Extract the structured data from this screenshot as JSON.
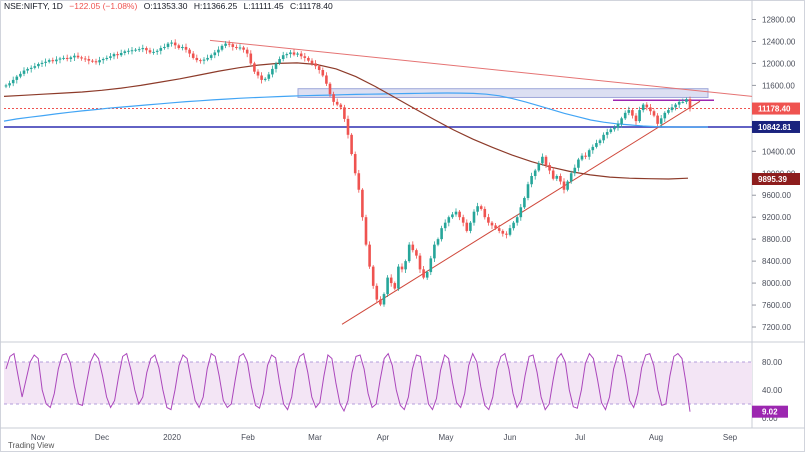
{
  "header": {
    "symbol": "NSE:NIFTY, 1D",
    "change": "−122.05 (−1.08%)",
    "open": "O:11353.30",
    "high": "H:11366.25",
    "low": "L:11111.45",
    "close": "C:11178.40"
  },
  "footer": {
    "text": "Trading View"
  },
  "colors": {
    "up": "#26a69a",
    "down": "#ef5350",
    "ma_blue": "#42a5f5",
    "ma_brown": "#8d3b2a",
    "trend_red": "#e57373",
    "support_line": "#2f2fb0",
    "resistance_purple": "#9c27b0",
    "zone_fill": "#c5cae9",
    "osc_line": "#ab47bc",
    "osc_bg": "#f3e5f5"
  },
  "chart_data": {
    "type": "line",
    "price_axis": {
      "ylim": [
        7000,
        12900
      ],
      "ticks": [
        "12800.00",
        "12400.00",
        "12000.00",
        "11600.00",
        "10400.00",
        "10000.00",
        "9600.00",
        "9200.00",
        "8800.00",
        "8400.00",
        "8000.00",
        "7600.00",
        "7200.00"
      ]
    },
    "price_labels": [
      {
        "text": "11178.40",
        "value": 11178.4,
        "color": "#ef5350"
      },
      {
        "text": "10842.81",
        "value": 10842.81,
        "color": "#1a237e"
      },
      {
        "text": "9895.39",
        "value": 9895.39,
        "color": "#8d1d1d"
      }
    ],
    "x_axis": {
      "labels": [
        "Nov",
        "Dec",
        "2020",
        "Feb",
        "Mar",
        "Apr",
        "May",
        "Jun",
        "Jul",
        "Aug",
        "Sep"
      ]
    },
    "series_close": [
      11600,
      11640,
      11700,
      11760,
      11810,
      11870,
      11900,
      11920,
      11950,
      11990,
      12010,
      12030,
      12060,
      12040,
      12070,
      12090,
      12100,
      12080,
      12110,
      12140,
      12110,
      12090,
      12080,
      12050,
      12040,
      12020,
      12060,
      12080,
      12100,
      12130,
      12170,
      12150,
      12190,
      12220,
      12230,
      12240,
      12250,
      12260,
      12280,
      12240,
      12200,
      12210,
      12230,
      12280,
      12300,
      12360,
      12380,
      12330,
      12280,
      12300,
      12250,
      12180,
      12100,
      12060,
      12050,
      12070,
      12100,
      12150,
      12200,
      12250,
      12320,
      12360,
      12350,
      12300,
      12280,
      12290,
      12250,
      12180,
      12000,
      11850,
      11780,
      11700,
      11720,
      11800,
      11900,
      12000,
      12080,
      12150,
      12170,
      12200,
      12160,
      12180,
      12130,
      12100,
      12050,
      12000,
      11950,
      11880,
      11780,
      11630,
      11440,
      11300,
      11250,
      11200,
      10990,
      10700,
      10350,
      10000,
      9700,
      9200,
      8700,
      8300,
      7950,
      7700,
      7610,
      7800,
      8100,
      8000,
      7900,
      8300,
      8250,
      8400,
      8700,
      8600,
      8500,
      8250,
      8100,
      8200,
      8450,
      8700,
      8800,
      9000,
      9100,
      9200,
      9250,
      9300,
      9200,
      9100,
      8950,
      9100,
      9300,
      9400,
      9350,
      9200,
      9100,
      9050,
      9000,
      8950,
      8900,
      8880,
      9000,
      9100,
      9200,
      9380,
      9550,
      9800,
      9950,
      10050,
      10180,
      10300,
      10150,
      10050,
      9900,
      9950,
      9850,
      9700,
      9850,
      10000,
      10100,
      10250,
      10320,
      10300,
      10420,
      10480,
      10550,
      10600,
      10700,
      10750,
      10800,
      10830,
      10900,
      11000,
      11100,
      11150,
      11050,
      10950,
      11150,
      11250,
      11200,
      11130,
      11050,
      10900,
      11000,
      11100,
      11150,
      11200,
      11250,
      11300,
      11300,
      11350,
      11178
    ],
    "ma_blue": [
      10950,
      10990,
      11020,
      11050,
      11080,
      11110,
      11135,
      11160,
      11185,
      11205,
      11225,
      11245,
      11265,
      11285,
      11305,
      11320,
      11335,
      11350,
      11365,
      11375,
      11385,
      11395,
      11405,
      11412,
      11418,
      11424,
      11430,
      11436,
      11440,
      11444,
      11448,
      11452,
      11456,
      11460,
      11462,
      11460,
      11455,
      11440,
      11410,
      11360,
      11300,
      11230,
      11160,
      11090,
      11030,
      10970,
      10930,
      10900,
      10880,
      10860,
      10850,
      10845,
      10840,
      10840,
      10842
    ],
    "ma_brown": [
      11400,
      11420,
      11440,
      11460,
      11480,
      11510,
      11550,
      11600,
      11660,
      11720,
      11790,
      11860,
      11920,
      11970,
      12000,
      12010,
      11980,
      11900,
      11760,
      11580,
      11380,
      11180,
      10980,
      10790,
      10620,
      10470,
      10330,
      10210,
      10110,
      10030,
      9970,
      9930,
      9910,
      9900,
      9895,
      9910
    ],
    "stoch_axis": {
      "ylim": [
        0,
        100
      ],
      "ticks": [
        "80.00",
        "40.00",
        "0.00"
      ],
      "bands": [
        20,
        80
      ]
    },
    "stoch_label": {
      "text": "9.02",
      "value": 9.02
    },
    "stoch_k": [
      70,
      88,
      92,
      60,
      30,
      55,
      80,
      90,
      85,
      40,
      20,
      15,
      35,
      70,
      90,
      92,
      78,
      45,
      20,
      18,
      50,
      80,
      92,
      85,
      60,
      30,
      15,
      25,
      60,
      88,
      92,
      70,
      40,
      20,
      30,
      65,
      85,
      90,
      72,
      40,
      15,
      12,
      40,
      75,
      90,
      85,
      55,
      25,
      15,
      30,
      70,
      92,
      88,
      60,
      25,
      15,
      20,
      55,
      88,
      92,
      80,
      45,
      18,
      14,
      35,
      75,
      90,
      86,
      50,
      20,
      12,
      30,
      70,
      88,
      92,
      65,
      30,
      15,
      22,
      60,
      90,
      85,
      50,
      20,
      10,
      25,
      65,
      88,
      90,
      70,
      35,
      15,
      20,
      55,
      85,
      92,
      75,
      40,
      18,
      12,
      30,
      70,
      90,
      88,
      55,
      20,
      12,
      28,
      68,
      90,
      85,
      50,
      22,
      15,
      35,
      75,
      92,
      80,
      45,
      18,
      12,
      30,
      70,
      88,
      92,
      70,
      35,
      15,
      25,
      60,
      88,
      90,
      65,
      30,
      12,
      20,
      55,
      85,
      92,
      80,
      40,
      16,
      14,
      40,
      78,
      92,
      85,
      55,
      22,
      12,
      30,
      70,
      90,
      88,
      60,
      25,
      15,
      35,
      72,
      90,
      92,
      75,
      40,
      18,
      20,
      60,
      88,
      92,
      85,
      50,
      9
    ]
  }
}
